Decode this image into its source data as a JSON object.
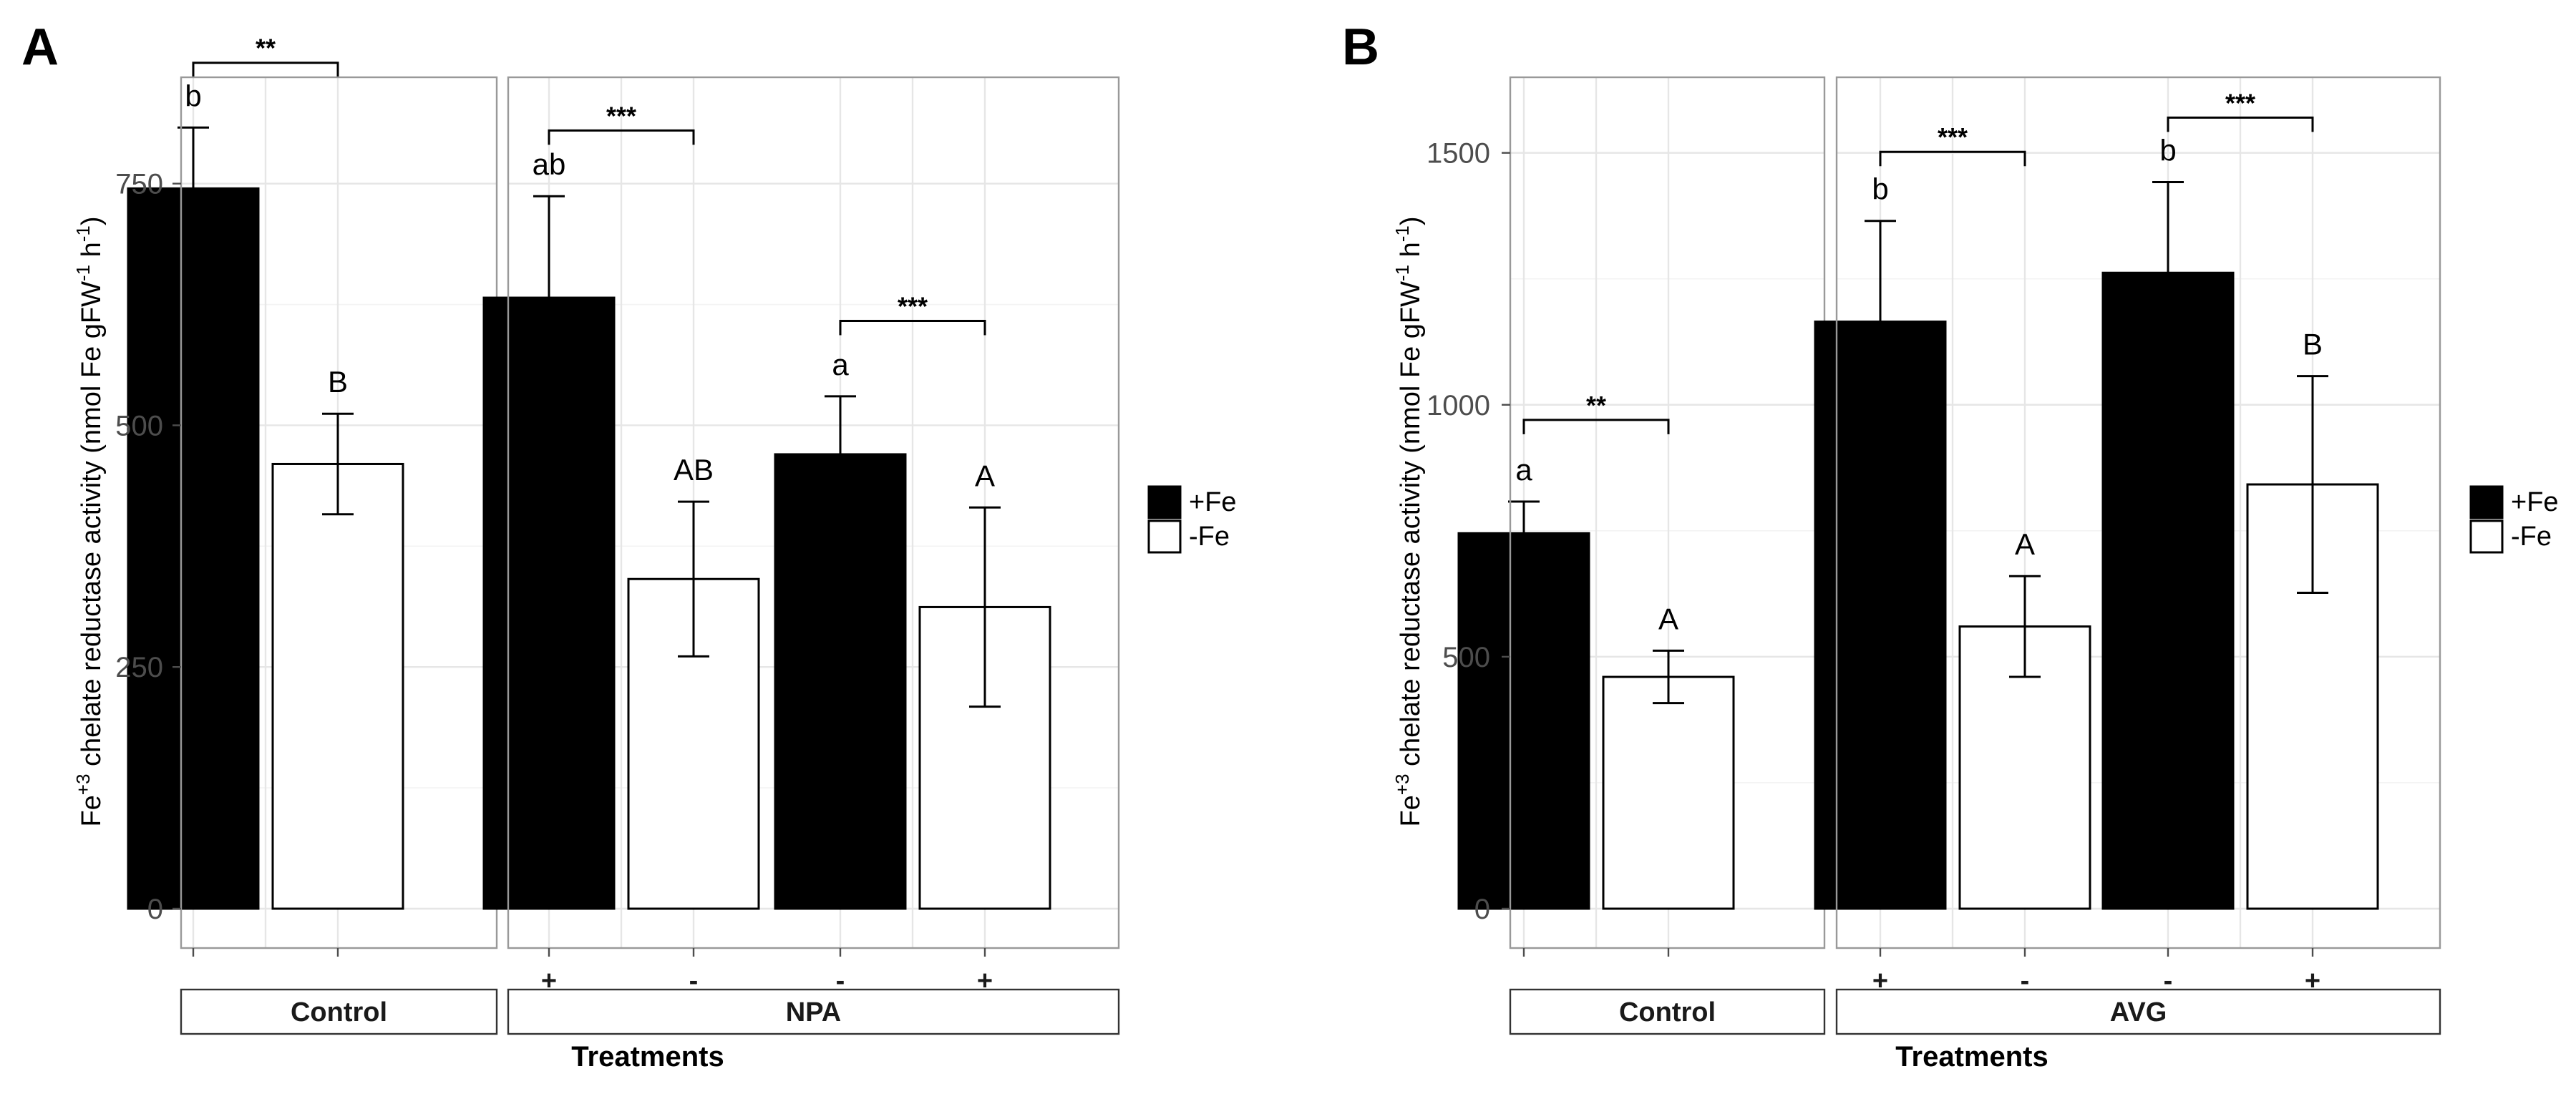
{
  "chart_data": [
    {
      "panel": "A",
      "type": "bar",
      "ylabel_main": "Fe",
      "ylabel_sup1": "+3",
      "ylabel_mid": " chelate reductase activity (nmol Fe gFW",
      "ylabel_sup2": "-1",
      "ylabel_mid2": " h",
      "ylabel_sup3": "-1",
      "ylabel_end": ")",
      "xlabel": "Treatments",
      "ylim": [
        0,
        860
      ],
      "yticks": [
        0,
        250,
        500,
        750
      ],
      "facets": [
        {
          "name": "Control",
          "categories": [
            ""
          ],
          "values": {
            "+Fe": [
              745
            ],
            "-Fe": [
              460
            ]
          },
          "errors": {
            "+Fe": [
              63
            ],
            "-Fe": [
              52
            ]
          },
          "letters": {
            "+Fe": [
              "b"
            ],
            "-Fe": [
              "B"
            ]
          },
          "brackets": [
            {
              "category": 0,
              "label": "**",
              "y": 875
            }
          ]
        },
        {
          "name": "NPA",
          "categories": [
            "+",
            "-"
          ],
          "values": {
            "+Fe": [
              632,
              470
            ],
            "-Fe": [
              341,
              312
            ]
          },
          "errors": {
            "+Fe": [
              105,
              60
            ],
            "-Fe": [
              80,
              103
            ]
          },
          "letters": {
            "+Fe": [
              "ab",
              "a"
            ],
            "-Fe": [
              "AB",
              "A"
            ]
          },
          "brackets": [
            {
              "category": 0,
              "label": "***",
              "y": 805
            },
            {
              "category": 1,
              "label": "***",
              "y": 608
            }
          ]
        }
      ],
      "legend": [
        "+Fe",
        "-Fe"
      ]
    },
    {
      "panel": "B",
      "type": "bar",
      "ylabel_main": "Fe",
      "ylabel_sup1": "+3",
      "ylabel_mid": " chelate reductase activity (nmol Fe gFW",
      "ylabel_sup2": "-1",
      "ylabel_mid2": " h",
      "ylabel_sup3": "-1",
      "ylabel_end": ")",
      "xlabel": "Treatments",
      "ylim": [
        0,
        1650
      ],
      "yticks": [
        0,
        500,
        1000,
        1500
      ],
      "facets": [
        {
          "name": "Control",
          "categories": [
            ""
          ],
          "values": {
            "+Fe": [
              745
            ],
            "-Fe": [
              460
            ]
          },
          "errors": {
            "+Fe": [
              63
            ],
            "-Fe": [
              52
            ]
          },
          "letters": {
            "+Fe": [
              "a"
            ],
            "-Fe": [
              "A"
            ]
          },
          "brackets": [
            {
              "category": 0,
              "label": "**",
              "y": 970
            }
          ]
        },
        {
          "name": "AVG",
          "categories": [
            "+",
            "-"
          ],
          "values": {
            "+Fe": [
              1165,
              1262
            ],
            "-Fe": [
              560,
              842
            ]
          },
          "errors": {
            "+Fe": [
              200,
              180
            ],
            "-Fe": [
              100,
              215
            ]
          },
          "letters": {
            "+Fe": [
              "b",
              "b"
            ],
            "-Fe": [
              "A",
              "B"
            ]
          },
          "brackets": [
            {
              "category": 0,
              "label": "***",
              "y": 1502
            },
            {
              "category": 1,
              "label": "***",
              "y": 1570
            }
          ]
        }
      ],
      "legend": [
        "+Fe",
        "-Fe"
      ]
    }
  ],
  "x_tick_order": [
    "+",
    "-",
    "-",
    "+"
  ],
  "colors": {
    "+Fe": "#000000",
    "-Fe": "#ffffff"
  }
}
